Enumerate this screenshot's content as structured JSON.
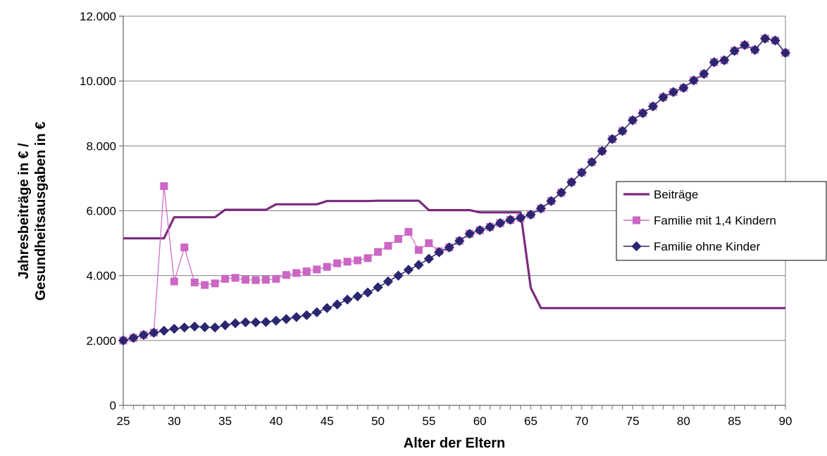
{
  "chart_data": {
    "type": "line",
    "xlabel": "Alter der Eltern",
    "ylabel_line1": "Jahresbeiträge in € /",
    "ylabel_line2": "Gesundheitsausgaben in €",
    "xlim": [
      25,
      90
    ],
    "ylim": [
      0,
      12000
    ],
    "x_ticks": [
      25,
      30,
      35,
      40,
      45,
      50,
      55,
      60,
      65,
      70,
      75,
      80,
      85,
      90
    ],
    "y_ticks": [
      0,
      2000,
      4000,
      6000,
      8000,
      10000,
      12000
    ],
    "y_tick_labels": [
      "0",
      "2.000",
      "4.000",
      "6.000",
      "8.000",
      "10.000",
      "12.000"
    ],
    "grid": "horizontal",
    "legend_position": "right",
    "x": [
      25,
      26,
      27,
      28,
      29,
      30,
      31,
      32,
      33,
      34,
      35,
      36,
      37,
      38,
      39,
      40,
      41,
      42,
      43,
      44,
      45,
      46,
      47,
      48,
      49,
      50,
      51,
      52,
      53,
      54,
      55,
      56,
      57,
      58,
      59,
      60,
      61,
      62,
      63,
      64,
      65,
      66,
      67,
      68,
      69,
      70,
      71,
      72,
      73,
      74,
      75,
      76,
      77,
      78,
      79,
      80,
      81,
      82,
      83,
      84,
      85,
      86,
      87,
      88,
      89,
      90
    ],
    "series": [
      {
        "name": "Beiträge",
        "color": "#7a2a7e",
        "marker": "none",
        "values": [
          5150,
          5150,
          5150,
          5150,
          5150,
          5800,
          5800,
          5800,
          5800,
          5800,
          6030,
          6030,
          6030,
          6030,
          6030,
          6200,
          6200,
          6200,
          6200,
          6200,
          6300,
          6300,
          6300,
          6300,
          6300,
          6310,
          6310,
          6310,
          6310,
          6310,
          6020,
          6020,
          6020,
          6020,
          6020,
          5950,
          5950,
          5950,
          5950,
          5950,
          3620,
          3000,
          3000,
          3000,
          3000,
          3000,
          3000,
          3000,
          3000,
          3000,
          3000,
          3000,
          3000,
          3000,
          3000,
          3000,
          3000,
          3000,
          3000,
          3000,
          3000,
          3000,
          3000,
          3000,
          3000,
          3000
        ]
      },
      {
        "name": "Familie mit 1,4 Kindern",
        "color": "#cc66c4",
        "marker": "square",
        "values": [
          2000,
          2080,
          2170,
          2240,
          6760,
          3820,
          4870,
          3790,
          3710,
          3760,
          3900,
          3930,
          3870,
          3860,
          3870,
          3900,
          4020,
          4080,
          4130,
          4190,
          4270,
          4380,
          4430,
          4470,
          4540,
          4730,
          4920,
          5130,
          5350,
          4790,
          5000,
          4750,
          4870,
          5070,
          5290,
          5400,
          5500,
          5620,
          5720,
          5780,
          5880,
          6070,
          6300,
          6560,
          6880,
          7180,
          7500,
          7840,
          8210,
          8460,
          8790,
          9010,
          9220,
          9500,
          9660,
          9790,
          10020,
          10220,
          10580,
          10640,
          10930,
          11110,
          10960,
          11310,
          11250,
          10870
        ]
      },
      {
        "name": "Familie ohne Kinder",
        "color": "#2b2670",
        "marker": "diamond",
        "values": [
          2000,
          2080,
          2170,
          2240,
          2300,
          2360,
          2400,
          2430,
          2410,
          2400,
          2470,
          2530,
          2560,
          2560,
          2570,
          2610,
          2660,
          2720,
          2780,
          2870,
          3000,
          3110,
          3260,
          3360,
          3480,
          3640,
          3820,
          4000,
          4180,
          4330,
          4520,
          4720,
          4870,
          5070,
          5290,
          5400,
          5500,
          5620,
          5720,
          5780,
          5880,
          6070,
          6300,
          6560,
          6880,
          7180,
          7500,
          7840,
          8210,
          8460,
          8790,
          9010,
          9220,
          9500,
          9660,
          9790,
          10020,
          10220,
          10580,
          10640,
          10930,
          11110,
          10960,
          11310,
          11250,
          10870
        ]
      }
    ]
  }
}
